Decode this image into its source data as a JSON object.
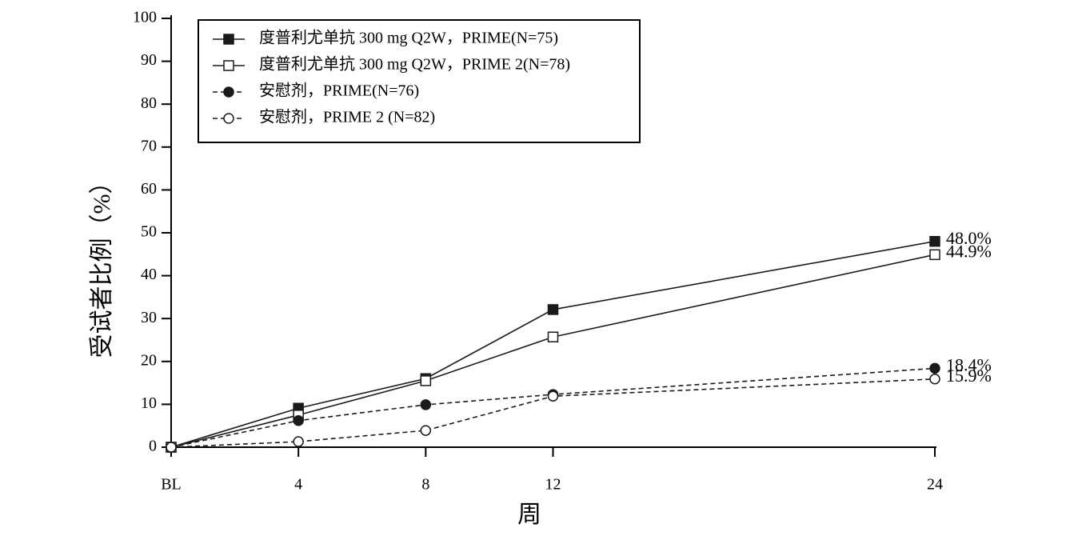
{
  "chart_data": {
    "type": "line",
    "x_label": "周",
    "y_label": "受试者比例（%）",
    "x": [
      0,
      4,
      8,
      12,
      24
    ],
    "xlim": [
      0,
      24
    ],
    "xticks": [
      {
        "value": 0,
        "label": "BL"
      },
      4,
      8,
      12,
      24
    ],
    "ylim": [
      0,
      100
    ],
    "yticks": [
      0,
      10,
      20,
      30,
      40,
      50,
      60,
      70,
      80,
      90,
      100
    ],
    "series": [
      {
        "name": "度普利尤单抗 300 mg Q2W，PRIME(N=75)",
        "color": "#1a1a1a",
        "dash": "solid",
        "marker": "square",
        "filled": true,
        "values": [
          0,
          9.1,
          16.0,
          32.1,
          48.0
        ],
        "value_labels": [
          null,
          null,
          null,
          null,
          "48.0%"
        ]
      },
      {
        "name": "度普利尤单抗 300 mg Q2W，PRIME 2(N=78)",
        "color": "#1a1a1a",
        "dash": "solid",
        "marker": "square",
        "filled": false,
        "values": [
          0,
          7.5,
          15.5,
          25.7,
          44.9
        ],
        "value_labels": [
          null,
          null,
          null,
          null,
          "44.9%"
        ]
      },
      {
        "name": "安慰剂，PRIME(N=76)",
        "color": "#1a1a1a",
        "dash": "dashed",
        "marker": "circle",
        "filled": true,
        "values": [
          0,
          6.2,
          9.9,
          12.3,
          18.4
        ],
        "value_labels": [
          null,
          null,
          null,
          null,
          "18.4%"
        ]
      },
      {
        "name": "安慰剂，PRIME 2 (N=82)",
        "color": "#1a1a1a",
        "dash": "dashed",
        "marker": "circle",
        "filled": false,
        "values": [
          0,
          1.3,
          3.9,
          11.9,
          15.9
        ],
        "value_labels": [
          null,
          null,
          null,
          null,
          "15.9%"
        ]
      }
    ],
    "legend": "upper-left"
  }
}
